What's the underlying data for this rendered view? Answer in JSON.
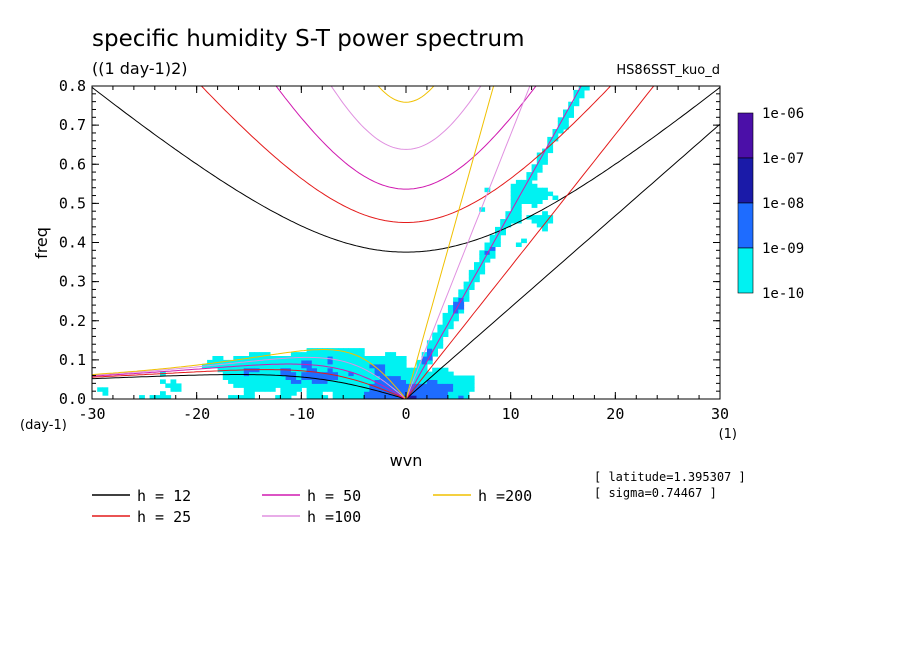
{
  "chart_data": {
    "type": "heatmap",
    "title": "specific humidity S-T power spectrum",
    "subtitle": "((1 day-1)2)",
    "run_label": "HS86SST_kuo_d",
    "xlabel": "wvn",
    "ylabel": "freq",
    "x_unit_label": "(1)",
    "y_unit_label": "(day-1)",
    "xlim": [
      -30,
      30
    ],
    "ylim": [
      0,
      0.8
    ],
    "x_ticks": [
      -30,
      -20,
      -10,
      0,
      10,
      20,
      30
    ],
    "x_tick_labels": [
      "-30",
      "-20",
      "-10",
      "0",
      "10",
      "20",
      "30"
    ],
    "y_ticks": [
      0,
      0.1,
      0.2,
      0.3,
      0.4,
      0.5,
      0.6,
      0.7,
      0.8
    ],
    "y_tick_labels": [
      "0.0",
      "0.1",
      "0.2",
      "0.3",
      "0.4",
      "0.5",
      "0.6",
      "0.7",
      "0.8"
    ],
    "grid": false,
    "colorbar": {
      "labels": [
        "1e-06",
        "1e-07",
        "1e-08",
        "1e-09",
        "1e-10"
      ],
      "colors": [
        "#4b0fa8",
        "#1a1aa8",
        "#1e6cff",
        "#00f2f2"
      ]
    },
    "info": [
      "[ latitude=1.395307 ]",
      "[ sigma=0.74467 ]"
    ],
    "dispersion_curves": [
      {
        "name": "h = 12",
        "h": 12,
        "color": "#000000"
      },
      {
        "name": "h = 25",
        "h": 25,
        "color": "#e41a1a"
      },
      {
        "name": "h = 50",
        "h": 50,
        "color": "#d01ab0"
      },
      {
        "name": "h =100",
        "h": 100,
        "color": "#e090e0"
      },
      {
        "name": "h =200",
        "h": 200,
        "color": "#f0c000"
      }
    ],
    "curve_families": [
      "kelvin",
      "inertia-gravity n=1",
      "equatorial rossby n=1"
    ],
    "power_regions": [
      {
        "level": "1e-10",
        "x_range": [
          -30,
          17
        ],
        "y_range": [
          0,
          0.45
        ]
      },
      {
        "level": "1e-09",
        "x_range": [
          -12,
          16
        ],
        "y_range": [
          0,
          0.8
        ]
      },
      {
        "level": "1e-08",
        "x_range": [
          -6,
          12
        ],
        "y_range": [
          0,
          0.12
        ]
      },
      {
        "level": "1e-07",
        "x_range": [
          -3,
          3
        ],
        "y_range": [
          0,
          0.03
        ]
      }
    ]
  }
}
